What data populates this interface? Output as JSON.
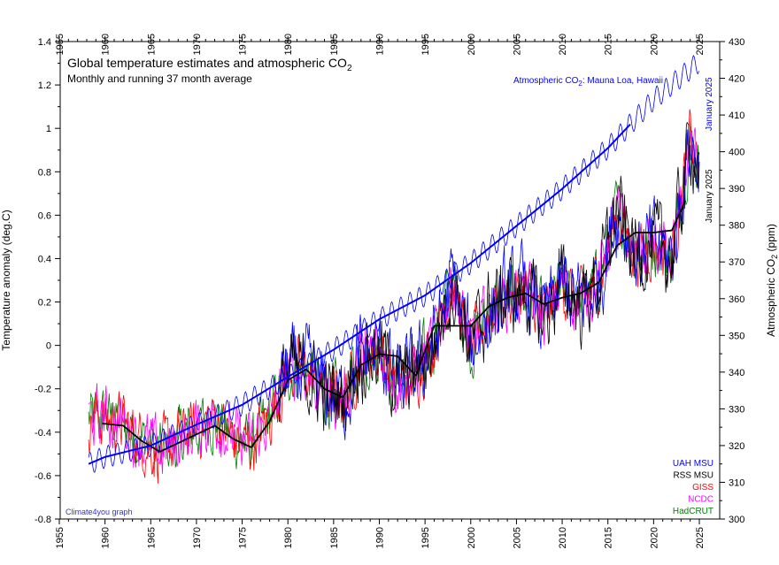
{
  "chart_data": {
    "type": "line",
    "title": "Global temperature estimates and atmospheric CO",
    "title_subscript": "2",
    "subtitle": "Monthly and running 37 month average",
    "ylabel_left": "Temperature anomaly (deg.C)",
    "ylabel_right_prefix": "Atmospheric CO",
    "ylabel_right_subscript": "2",
    "ylabel_right_suffix": " (ppm)",
    "xlim": [
      1955,
      2025
    ],
    "ylim_left": [
      -0.8,
      1.4
    ],
    "ylim_right": [
      300,
      430
    ],
    "x_ticks": [
      "1955",
      "1960",
      "1965",
      "1970",
      "1975",
      "1980",
      "1985",
      "1990",
      "1995",
      "2000",
      "2005",
      "2010",
      "2015",
      "2020",
      "2025"
    ],
    "y_ticks_left": [
      "-0.8",
      "-0.6",
      "-0.4",
      "-0.2",
      "0",
      "0.2",
      "0.4",
      "0.6",
      "0.8",
      "1",
      "1.2",
      "1.4"
    ],
    "y_ticks_right": [
      "300",
      "310",
      "320",
      "330",
      "340",
      "350",
      "360",
      "370",
      "380",
      "390",
      "400",
      "410",
      "420",
      "430"
    ],
    "grid": false,
    "legend_position": "bottom-right",
    "co2_label_prefix": "Atmospheric CO",
    "co2_label_subscript": "2",
    "co2_label_suffix": ": Mauna Loa, Hawaii",
    "end_label_co2": "January 2025",
    "end_label_temp": "January 2025",
    "credit": "Climate4you graph",
    "series": [
      {
        "name": "UAH MSU",
        "color": "#0000ff"
      },
      {
        "name": "RSS MSU",
        "color": "#000000"
      },
      {
        "name": "GISS",
        "color": "#ff0000"
      },
      {
        "name": "NCDC",
        "color": "#ff00ff"
      },
      {
        "name": "HadCRUT",
        "color": "#008000"
      }
    ],
    "co2_series": {
      "color": "#0000ff",
      "seasonal_amplitude_ppm": 3,
      "x": [
        1958.2,
        1960,
        1965,
        1970,
        1975,
        1980,
        1985,
        1990,
        1995,
        2000,
        2005,
        2010,
        2015,
        2020,
        2025.0
      ],
      "values": [
        315.0,
        316.9,
        320.0,
        325.7,
        331.1,
        338.7,
        346.1,
        354.4,
        360.9,
        369.7,
        379.8,
        389.9,
        401.0,
        414.2,
        424.5
      ]
    },
    "running_average": {
      "name": "37 month average",
      "color": "#000000",
      "x": [
        1959.7,
        1962,
        1964,
        1966,
        1968,
        1970,
        1972,
        1974,
        1976,
        1978,
        1980,
        1982,
        1984,
        1986,
        1988,
        1990,
        1992,
        1994,
        1996,
        1998,
        2000,
        2002,
        2004,
        2006,
        2008,
        2010,
        2012,
        2014,
        2016,
        2018,
        2020,
        2022,
        2023.5
      ],
      "values": [
        -0.36,
        -0.37,
        -0.44,
        -0.49,
        -0.45,
        -0.41,
        -0.37,
        -0.43,
        -0.47,
        -0.35,
        -0.16,
        -0.11,
        -0.2,
        -0.24,
        -0.09,
        -0.04,
        -0.05,
        -0.14,
        0.09,
        0.09,
        0.09,
        0.18,
        0.22,
        0.24,
        0.19,
        0.22,
        0.24,
        0.29,
        0.46,
        0.52,
        0.52,
        0.53,
        0.67
      ]
    },
    "monthly_envelope": {
      "x": [
        1958.2,
        1960,
        1962,
        1964,
        1966,
        1968,
        1970,
        1972,
        1974,
        1976,
        1978,
        1980,
        1982,
        1984,
        1986,
        1988,
        1990,
        1992,
        1994,
        1996,
        1998,
        2000,
        2002,
        2004,
        2006,
        2008,
        2010,
        2012,
        2014,
        2016,
        2018,
        2020,
        2022,
        2024,
        2025.0
      ],
      "values": [
        -0.34,
        -0.33,
        -0.36,
        -0.43,
        -0.5,
        -0.44,
        -0.38,
        -0.33,
        -0.43,
        -0.46,
        -0.33,
        -0.12,
        -0.12,
        -0.22,
        -0.25,
        -0.05,
        -0.02,
        -0.18,
        -0.13,
        0.02,
        0.3,
        -0.02,
        0.16,
        0.22,
        0.25,
        0.12,
        0.28,
        0.19,
        0.3,
        0.62,
        0.42,
        0.47,
        0.4,
        0.95,
        0.82
      ]
    }
  }
}
